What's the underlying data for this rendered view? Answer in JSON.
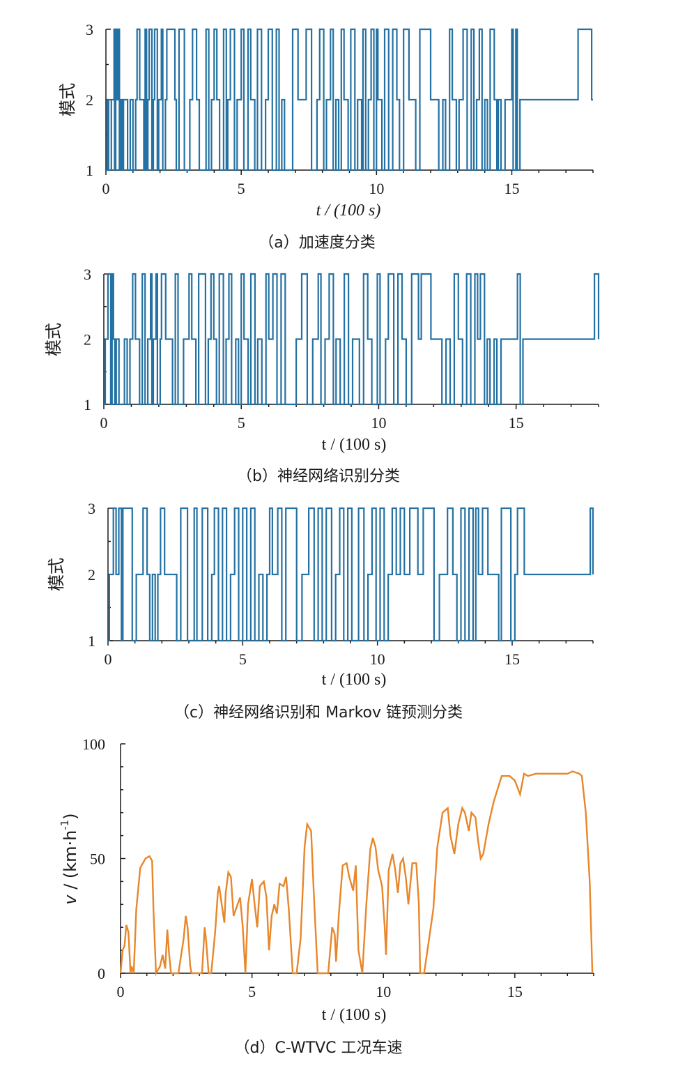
{
  "figure": {
    "captions": [
      "（a）加速度分类",
      "（b）神经网络识别分类",
      "（c）神经网络识别和 Markov 链预测分类",
      "（d）C-WTVC 工况车速"
    ]
  },
  "chart_data": [
    {
      "type": "line",
      "caption": "（a）加速度分类",
      "xlabel": "t / (100 s)",
      "ylabel": "模式",
      "xticks": [
        0,
        5,
        10,
        15
      ],
      "yticks": [
        1,
        2,
        3
      ],
      "xlim": [
        0,
        18
      ],
      "ylim": [
        1,
        3
      ],
      "color": "#2471a3",
      "series": [
        {
          "x": [
            0,
            0.05,
            0.1,
            0.2,
            0.3,
            0.32,
            0.36,
            0.4,
            0.45,
            0.5,
            0.55,
            0.6,
            0.65,
            0.8,
            0.9,
            1.0,
            1.1,
            1.15,
            1.25,
            1.4,
            1.45,
            1.5,
            1.55,
            1.6,
            1.7,
            1.75,
            1.8,
            1.9,
            1.95,
            2.05,
            2.1,
            2.2,
            2.25,
            2.55,
            2.6,
            2.7,
            2.9,
            3.1,
            3.2,
            3.35,
            3.45,
            3.7,
            3.8,
            3.9,
            4.0,
            4.1,
            4.2,
            4.35,
            4.45,
            4.5,
            4.6,
            4.75,
            4.85,
            5.0,
            5.1,
            5.25,
            5.35,
            5.5,
            5.6,
            5.75,
            5.9,
            6.0,
            6.15,
            6.3,
            6.4,
            6.5,
            6.6,
            6.9,
            7.1,
            7.4,
            7.6,
            7.8,
            7.9,
            8.05,
            8.15,
            8.3,
            8.4,
            8.5,
            8.6,
            8.7,
            8.8,
            8.95,
            9.05,
            9.2,
            9.3,
            9.45,
            9.5,
            9.6,
            9.7,
            9.8,
            9.9,
            10.0,
            10.05,
            10.2,
            10.3,
            10.45,
            10.6,
            10.75,
            10.85,
            11.0,
            11.2,
            11.45,
            11.6,
            12.0,
            12.3,
            12.45,
            12.55,
            12.7,
            12.8,
            12.95,
            13.05,
            13.2,
            13.35,
            13.5,
            13.6,
            13.7,
            13.8,
            13.9,
            14.0,
            14.1,
            14.2,
            14.35,
            14.45,
            14.5,
            14.6,
            14.75,
            15.0,
            15.05,
            15.15,
            15.2,
            15.3,
            17.45,
            17.95,
            18.0
          ],
          "y": [
            1,
            2,
            1,
            2,
            3,
            1,
            3,
            2,
            3,
            1,
            2,
            1,
            2,
            1,
            2,
            1,
            2,
            3,
            2,
            1,
            3,
            1,
            2,
            3,
            1,
            2,
            3,
            1,
            2,
            3,
            1,
            2,
            3,
            2,
            1,
            3,
            1,
            2,
            3,
            2,
            1,
            3,
            1,
            2,
            3,
            2,
            1,
            3,
            1,
            2,
            3,
            1,
            2,
            3,
            1,
            3,
            2,
            1,
            3,
            1,
            2,
            3,
            1,
            3,
            1,
            2,
            1,
            3,
            2,
            3,
            1,
            2,
            3,
            1,
            2,
            3,
            1,
            2,
            1,
            3,
            2,
            1,
            3,
            1,
            2,
            1,
            3,
            1,
            2,
            3,
            1,
            3,
            2,
            1,
            3,
            1,
            3,
            2,
            1,
            3,
            2,
            1,
            3,
            2,
            1,
            2,
            1,
            3,
            2,
            1,
            2,
            3,
            1,
            3,
            1,
            2,
            3,
            1,
            2,
            1,
            3,
            2,
            1,
            2,
            1,
            2,
            3,
            1,
            3,
            1,
            2,
            3,
            2,
            2
          ]
        }
      ]
    },
    {
      "type": "line",
      "caption": "（b）神经网络识别分类",
      "xlabel": "t / (100 s)",
      "ylabel": "模式",
      "xticks": [
        0,
        5,
        10,
        15
      ],
      "yticks": [
        1,
        2,
        3
      ],
      "xlim": [
        0,
        18
      ],
      "ylim": [
        1,
        3
      ],
      "color": "#2471a3",
      "series": [
        {
          "x": [
            0,
            0.05,
            0.15,
            0.25,
            0.3,
            0.35,
            0.4,
            0.45,
            0.55,
            0.75,
            0.85,
            0.95,
            1.05,
            1.15,
            1.3,
            1.4,
            1.5,
            1.6,
            1.7,
            1.75,
            1.8,
            1.9,
            1.95,
            2.05,
            2.1,
            2.25,
            2.5,
            2.6,
            2.7,
            2.9,
            3.1,
            3.2,
            3.35,
            3.45,
            3.7,
            3.8,
            3.9,
            4.0,
            4.1,
            4.2,
            4.35,
            4.45,
            4.55,
            4.65,
            4.8,
            4.9,
            5.0,
            5.1,
            5.25,
            5.35,
            5.5,
            5.6,
            5.75,
            5.9,
            6.0,
            6.15,
            6.3,
            6.45,
            6.6,
            7.0,
            7.2,
            7.4,
            7.6,
            7.8,
            7.9,
            8.05,
            8.2,
            8.35,
            8.45,
            8.6,
            8.75,
            8.9,
            9.05,
            9.3,
            9.45,
            9.6,
            9.75,
            9.95,
            10.05,
            10.25,
            10.35,
            10.55,
            10.7,
            10.85,
            11.0,
            11.2,
            11.45,
            11.55,
            11.9,
            12.3,
            12.45,
            12.6,
            12.75,
            12.9,
            13.05,
            13.2,
            13.35,
            13.5,
            13.6,
            13.7,
            13.85,
            13.95,
            14.05,
            14.2,
            14.3,
            14.45,
            15.05,
            15.15,
            15.25,
            17.45,
            17.85,
            18.0
          ],
          "y": [
            1,
            2,
            3,
            1,
            3,
            2,
            1,
            2,
            1,
            2,
            1,
            2,
            3,
            2,
            1,
            3,
            1,
            2,
            3,
            1,
            2,
            3,
            1,
            2,
            3,
            2,
            1,
            3,
            1,
            2,
            3,
            2,
            1,
            3,
            1,
            2,
            3,
            2,
            1,
            3,
            1,
            2,
            3,
            1,
            2,
            1,
            3,
            2,
            1,
            3,
            1,
            2,
            1,
            3,
            2,
            3,
            1,
            3,
            1,
            2,
            3,
            1,
            2,
            3,
            1,
            2,
            3,
            1,
            2,
            1,
            3,
            1,
            2,
            1,
            3,
            2,
            1,
            3,
            1,
            2,
            3,
            1,
            3,
            2,
            1,
            3,
            2,
            3,
            2,
            1,
            2,
            1,
            3,
            2,
            1,
            3,
            1,
            3,
            2,
            3,
            1,
            2,
            1,
            2,
            1,
            2,
            3,
            1,
            2,
            2,
            3,
            2
          ]
        }
      ]
    },
    {
      "type": "line",
      "caption": "（c）神经网络识别和 Markov 链预测分类",
      "xlabel": "t / (100 s)",
      "ylabel": "模式",
      "xticks": [
        0,
        5,
        10,
        15
      ],
      "yticks": [
        1,
        2,
        3
      ],
      "xlim": [
        0,
        18
      ],
      "ylim": [
        1,
        3
      ],
      "color": "#2471a3",
      "series": [
        {
          "x": [
            0,
            0.05,
            0.2,
            0.3,
            0.4,
            0.5,
            0.55,
            0.9,
            1.05,
            1.3,
            1.45,
            1.55,
            1.65,
            1.75,
            1.85,
            1.95,
            2.1,
            2.55,
            2.7,
            2.95,
            3.2,
            3.3,
            3.5,
            3.7,
            3.85,
            3.95,
            4.1,
            4.25,
            4.4,
            4.55,
            4.7,
            4.85,
            5.0,
            5.15,
            5.3,
            5.45,
            5.6,
            5.75,
            5.9,
            6.0,
            6.1,
            6.3,
            6.45,
            6.6,
            7.0,
            7.2,
            7.45,
            7.65,
            7.8,
            7.95,
            8.1,
            8.3,
            8.45,
            8.6,
            8.75,
            8.9,
            9.05,
            9.3,
            9.5,
            9.65,
            9.8,
            9.95,
            10.1,
            10.25,
            10.4,
            10.55,
            10.7,
            10.85,
            11.0,
            11.2,
            11.5,
            11.7,
            12.1,
            12.3,
            12.6,
            12.8,
            12.95,
            13.1,
            13.25,
            13.4,
            13.55,
            13.65,
            13.75,
            13.9,
            14.1,
            14.5,
            14.6,
            14.95,
            15.1,
            15.2,
            15.45,
            17.45,
            17.9,
            18.0
          ],
          "y": [
            1,
            2,
            3,
            2,
            3,
            1,
            3,
            1,
            2,
            3,
            2,
            1,
            2,
            1,
            2,
            3,
            2,
            1,
            3,
            1,
            3,
            1,
            3,
            1,
            2,
            3,
            1,
            3,
            1,
            2,
            3,
            1,
            3,
            1,
            3,
            1,
            2,
            1,
            2,
            3,
            2,
            3,
            1,
            3,
            1,
            2,
            3,
            1,
            3,
            1,
            3,
            1,
            2,
            3,
            1,
            3,
            1,
            3,
            1,
            2,
            3,
            1,
            3,
            1,
            2,
            3,
            2,
            3,
            2,
            3,
            2,
            3,
            1,
            2,
            3,
            2,
            1,
            3,
            1,
            3,
            1,
            3,
            2,
            3,
            2,
            1,
            3,
            1,
            2,
            3,
            2,
            2,
            3,
            2
          ]
        }
      ]
    },
    {
      "type": "line",
      "caption": "（d）C-WTVC 工况车速",
      "xlabel": "t / (100 s)",
      "ylabel": "v / (km·h-1)",
      "xticks": [
        0,
        5,
        10,
        15
      ],
      "yticks": [
        0,
        50,
        100
      ],
      "xlim": [
        0,
        18
      ],
      "ylim": [
        0,
        100
      ],
      "color": "#e8862a",
      "series": [
        {
          "x": [
            0,
            0.08,
            0.15,
            0.22,
            0.3,
            0.38,
            0.42,
            0.5,
            0.6,
            0.75,
            0.95,
            1.1,
            1.2,
            1.25,
            1.35,
            1.5,
            1.6,
            1.7,
            1.78,
            1.85,
            1.92,
            2.05,
            2.2,
            2.4,
            2.48,
            2.55,
            2.65,
            2.7,
            2.8,
            3.1,
            3.2,
            3.25,
            3.35,
            3.45,
            3.6,
            3.7,
            3.75,
            3.85,
            3.95,
            4.0,
            4.1,
            4.2,
            4.3,
            4.45,
            4.55,
            4.65,
            4.75,
            4.85,
            5.0,
            5.1,
            5.2,
            5.3,
            5.45,
            5.55,
            5.65,
            5.75,
            5.85,
            5.95,
            6.05,
            6.2,
            6.3,
            6.4,
            6.55,
            6.7,
            6.85,
            7.0,
            7.1,
            7.25,
            7.35,
            7.5,
            7.7,
            7.9,
            8.05,
            8.15,
            8.2,
            8.3,
            8.45,
            8.6,
            8.7,
            8.85,
            8.95,
            9.05,
            9.2,
            9.35,
            9.5,
            9.6,
            9.7,
            9.8,
            9.95,
            10.05,
            10.1,
            10.2,
            10.35,
            10.45,
            10.55,
            10.65,
            10.75,
            10.85,
            10.95,
            11.1,
            11.25,
            11.35,
            11.4,
            11.55,
            11.9,
            12.05,
            12.25,
            12.45,
            12.55,
            12.7,
            12.85,
            13.0,
            13.1,
            13.25,
            13.35,
            13.5,
            13.6,
            13.7,
            13.8,
            14.0,
            14.2,
            14.5,
            14.8,
            15.0,
            15.2,
            15.35,
            15.5,
            15.8,
            16.2,
            16.6,
            17.0,
            17.2,
            17.45,
            17.55,
            17.7,
            17.85,
            17.95
          ],
          "y": [
            0,
            10,
            12,
            21,
            18,
            0,
            3,
            0,
            28,
            46,
            50,
            51,
            49,
            28,
            0,
            3,
            8,
            2,
            19,
            8,
            0,
            0,
            0,
            15,
            25,
            20,
            3,
            0,
            0,
            0,
            20,
            15,
            0,
            0,
            18,
            35,
            38,
            30,
            22,
            35,
            44,
            42,
            25,
            30,
            33,
            20,
            0,
            30,
            41,
            30,
            20,
            38,
            40,
            33,
            10,
            25,
            30,
            26,
            39,
            38,
            42,
            28,
            0,
            0,
            15,
            55,
            65,
            62,
            35,
            0,
            0,
            0,
            20,
            17,
            5,
            25,
            47,
            48,
            42,
            36,
            47,
            10,
            0,
            30,
            54,
            59,
            55,
            45,
            38,
            20,
            8,
            45,
            52,
            45,
            35,
            48,
            50,
            42,
            30,
            48,
            48,
            30,
            0,
            0,
            28,
            55,
            70,
            72,
            60,
            52,
            65,
            72,
            70,
            62,
            70,
            68,
            58,
            50,
            52,
            65,
            75,
            86,
            86,
            84,
            78,
            87,
            86,
            87,
            87,
            87,
            87,
            88,
            87,
            86,
            70,
            40,
            0
          ]
        }
      ]
    }
  ]
}
